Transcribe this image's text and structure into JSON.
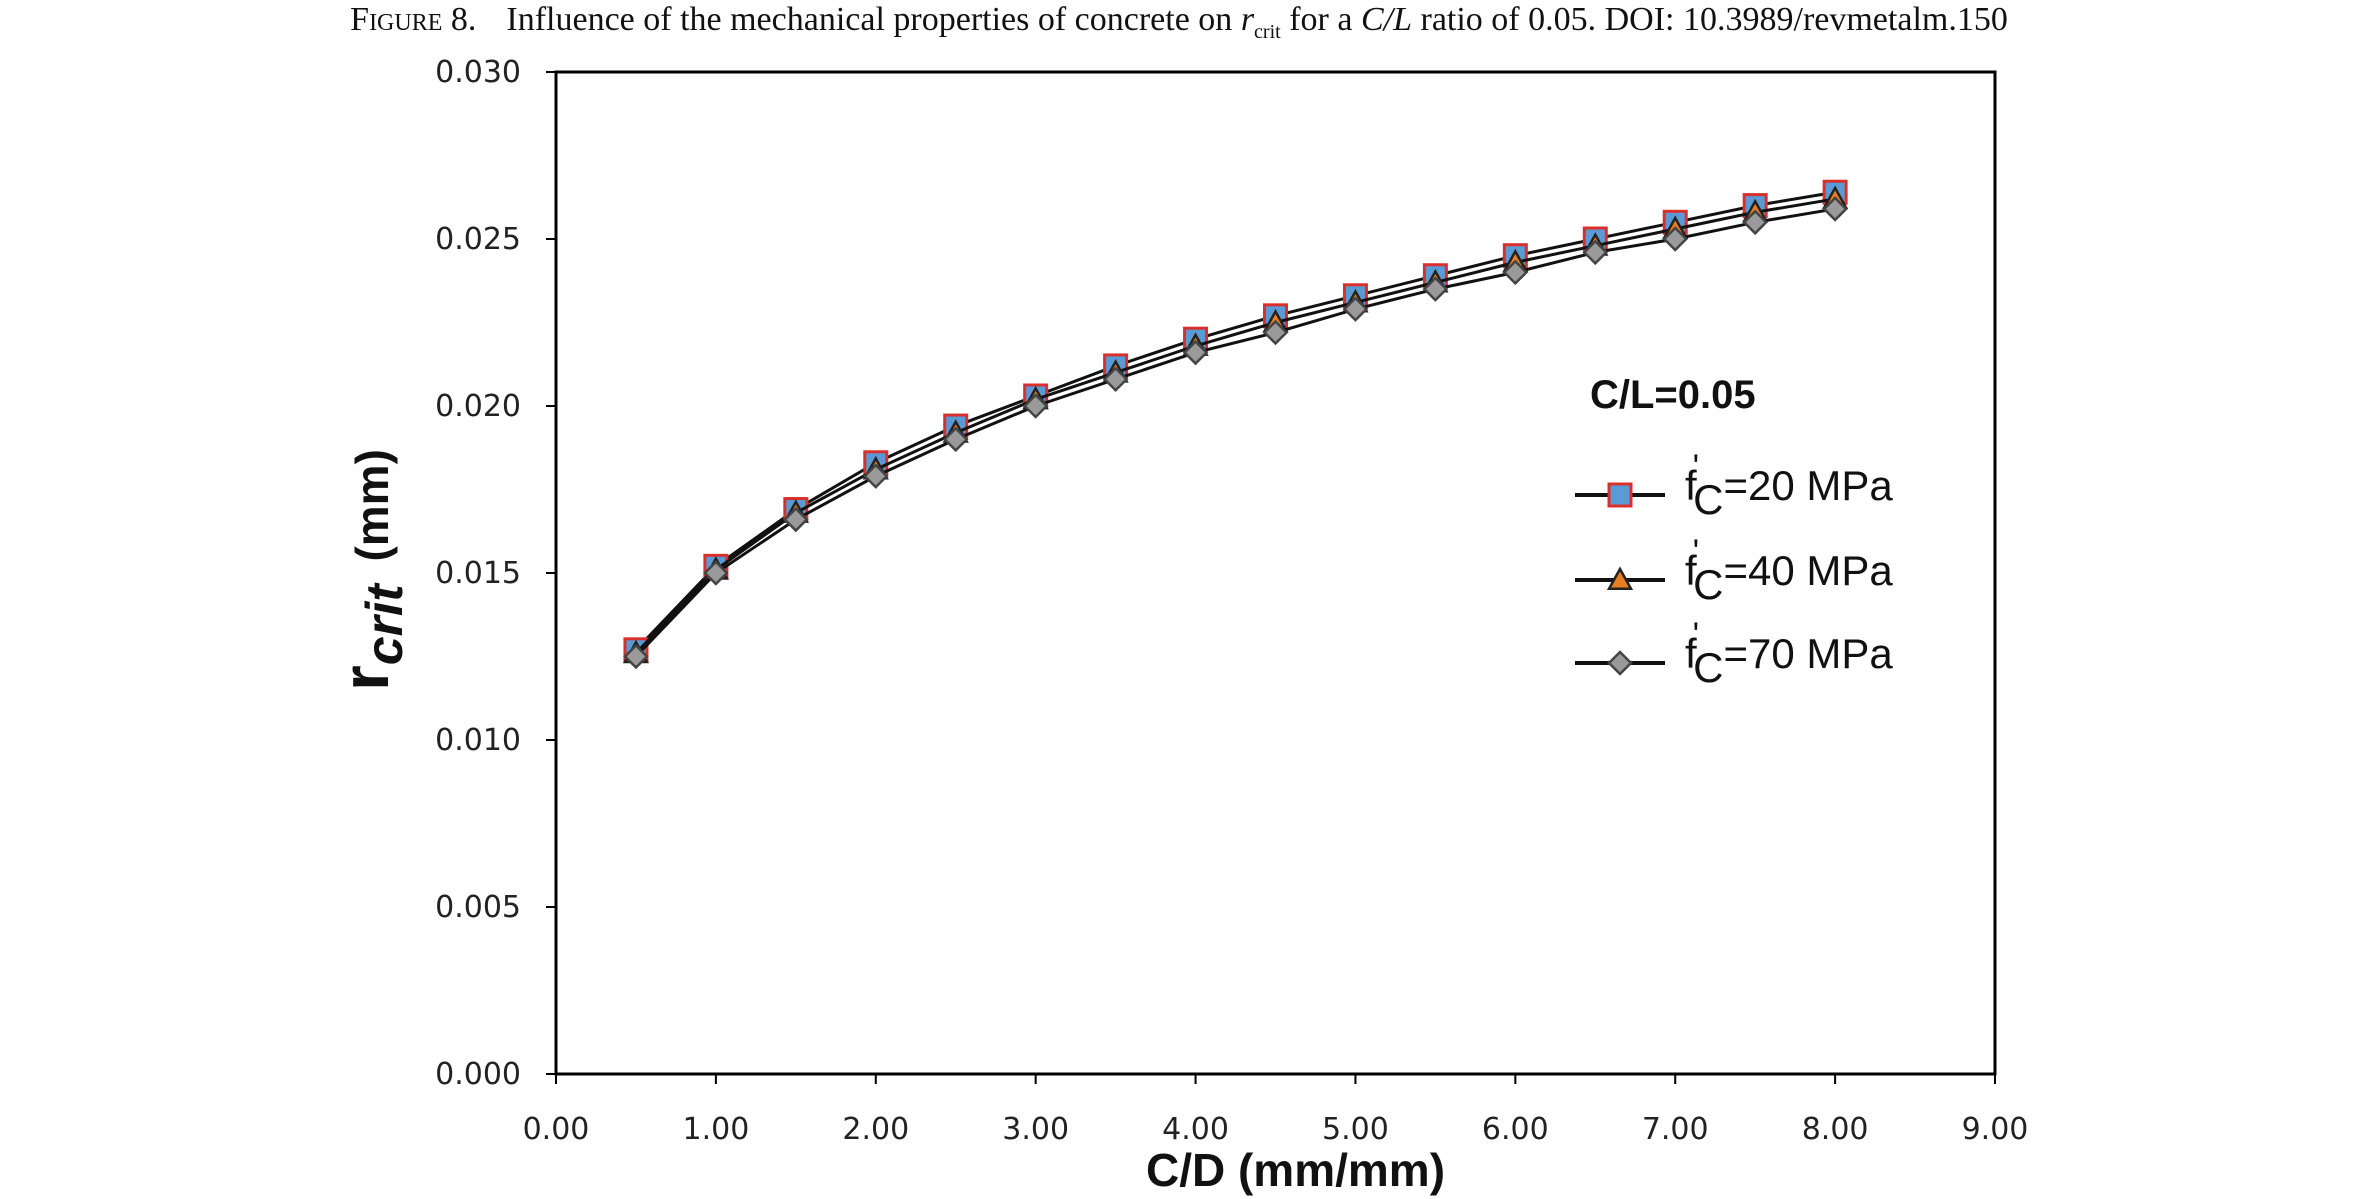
{
  "caption": {
    "label": "Figure 8.",
    "text_before": "Influence of the mechanical properties of concrete on ",
    "var": "r",
    "var_sub": "crit",
    "text_mid": " for a ",
    "ratio": "C/L",
    "text_after": " ratio of 0.05. DOI: 10.3989/revmetalm.150"
  },
  "chart_data": {
    "type": "line",
    "xlabel": "C/D (mm/mm)",
    "ylabel": {
      "main": "r",
      "sub": "crit",
      "unit": "(mm)"
    },
    "xlim": [
      0,
      9
    ],
    "ylim": [
      0,
      0.03
    ],
    "x_ticks": [
      "0.00",
      "1.00",
      "2.00",
      "3.00",
      "4.00",
      "5.00",
      "6.00",
      "7.00",
      "8.00",
      "9.00"
    ],
    "y_ticks": [
      "0.000",
      "0.005",
      "0.010",
      "0.015",
      "0.020",
      "0.025",
      "0.030"
    ],
    "grid": false,
    "legend": {
      "title": "C/L=0.05",
      "position": "right-center"
    },
    "x": [
      0.5,
      1.0,
      1.5,
      2.0,
      2.5,
      3.0,
      3.5,
      4.0,
      4.5,
      5.0,
      5.5,
      6.0,
      6.5,
      7.0,
      7.5,
      8.0
    ],
    "series": [
      {
        "name": "f'c=20 MPa",
        "legend_pre": "f",
        "legend_sub": "C",
        "legend_post": "=20 MPa",
        "marker": "square",
        "marker_fill": "#5b9bd5",
        "marker_stroke": "#d9302b",
        "values": [
          0.0127,
          0.0152,
          0.0169,
          0.0183,
          0.0194,
          0.0203,
          0.0212,
          0.022,
          0.0227,
          0.0233,
          0.0239,
          0.0245,
          0.025,
          0.0255,
          0.026,
          0.0264
        ]
      },
      {
        "name": "f'c=40 MPa",
        "legend_pre": "f",
        "legend_sub": "C",
        "legend_post": "=40 MPa",
        "marker": "triangle",
        "marker_fill": "#e67e22",
        "marker_stroke": "#222222",
        "values": [
          0.0126,
          0.0151,
          0.0168,
          0.0181,
          0.0192,
          0.0202,
          0.021,
          0.0218,
          0.0225,
          0.0231,
          0.0237,
          0.0243,
          0.0248,
          0.0253,
          0.0258,
          0.0262
        ]
      },
      {
        "name": "f'c=70 MPa",
        "legend_pre": "f",
        "legend_sub": "C",
        "legend_post": "=70 MPa",
        "marker": "diamond",
        "marker_fill": "#9a9a9a",
        "marker_stroke": "#444444",
        "values": [
          0.0125,
          0.015,
          0.0166,
          0.0179,
          0.019,
          0.02,
          0.0208,
          0.0216,
          0.0222,
          0.0229,
          0.0235,
          0.024,
          0.0246,
          0.025,
          0.0255,
          0.0259
        ]
      }
    ]
  }
}
